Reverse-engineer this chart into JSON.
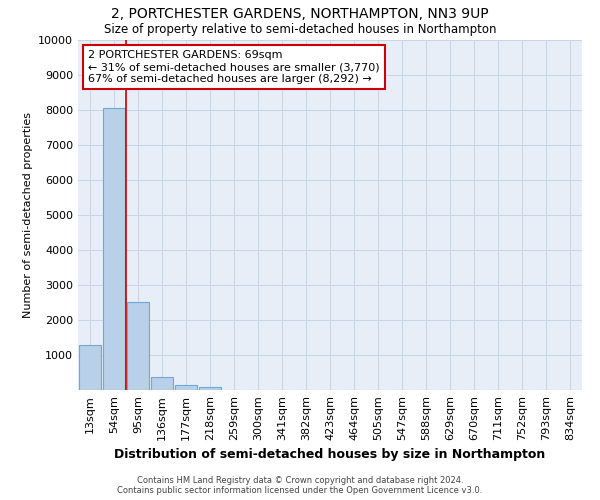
{
  "title": "2, PORTCHESTER GARDENS, NORTHAMPTON, NN3 9UP",
  "subtitle": "Size of property relative to semi-detached houses in Northampton",
  "xlabel": "Distribution of semi-detached houses by size in Northampton",
  "ylabel": "Number of semi-detached properties",
  "categories": [
    "13sqm",
    "54sqm",
    "95sqm",
    "136sqm",
    "177sqm",
    "218sqm",
    "259sqm",
    "300sqm",
    "341sqm",
    "382sqm",
    "423sqm",
    "464sqm",
    "505sqm",
    "547sqm",
    "588sqm",
    "629sqm",
    "670sqm",
    "711sqm",
    "752sqm",
    "793sqm",
    "834sqm"
  ],
  "values": [
    1300,
    8050,
    2520,
    380,
    145,
    100,
    0,
    0,
    0,
    0,
    0,
    0,
    0,
    0,
    0,
    0,
    0,
    0,
    0,
    0,
    0
  ],
  "bar_color": "#b8d0e8",
  "bar_edge_color": "#6aaad4",
  "red_line_x": 1.5,
  "annotation_line1": "2 PORTCHESTER GARDENS: 69sqm",
  "annotation_line2": "← 31% of semi-detached houses are smaller (3,770)",
  "annotation_line3": "67% of semi-detached houses are larger (8,292) →",
  "annotation_box_color": "#ffffff",
  "annotation_box_edge": "#cc0000",
  "red_line_color": "#cc0000",
  "ylim": [
    0,
    10000
  ],
  "yticks": [
    0,
    1000,
    2000,
    3000,
    4000,
    5000,
    6000,
    7000,
    8000,
    9000,
    10000
  ],
  "grid_color": "#c8d4e8",
  "bg_color": "#e8eef8",
  "footer_line1": "Contains HM Land Registry data © Crown copyright and database right 2024.",
  "footer_line2": "Contains public sector information licensed under the Open Government Licence v3.0."
}
